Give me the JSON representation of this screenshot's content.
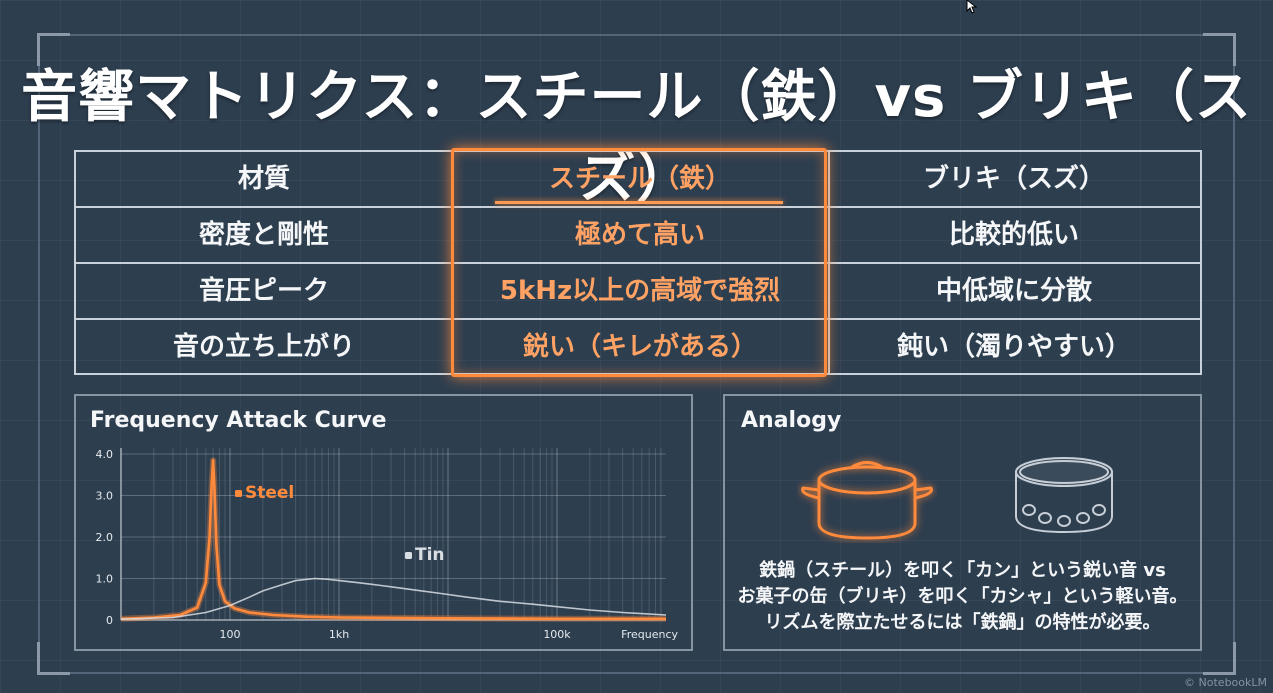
{
  "title": "音響マトリクス：スチール（鉄）vs ブリキ（スズ）",
  "table": {
    "rows": [
      [
        "材質",
        "スチール（鉄）",
        "ブリキ（スズ）"
      ],
      [
        "密度と剛性",
        "極めて高い",
        "比較的低い"
      ],
      [
        "音圧ピーク",
        "5kHz以上の高域で強烈",
        "中低域に分散"
      ],
      [
        "音の立ち上がり",
        "鋭い（キレがある）",
        "鈍い（濁りやすい）"
      ]
    ]
  },
  "colors": {
    "background": "#2d3e4f",
    "steel_accent": "#ff8a3c",
    "tin": "#d9dee3",
    "text": "#f4f6f8"
  },
  "chart_data": {
    "type": "line",
    "title": "Frequency Attack Curve",
    "xlabel": "Frequency",
    "ylabel": "",
    "x_scale": "log",
    "xlim": [
      10,
      1000000
    ],
    "ylim": [
      0,
      4
    ],
    "x_ticks": [
      {
        "value": 100,
        "label": "100"
      },
      {
        "value": 1000,
        "label": "1kh"
      },
      {
        "value": 100000,
        "label": "100k"
      }
    ],
    "y_ticks": [
      {
        "value": 0,
        "label": "0"
      },
      {
        "value": 1,
        "label": "1.0"
      },
      {
        "value": 2,
        "label": "2.0"
      },
      {
        "value": 3,
        "label": "3.0"
      },
      {
        "value": 4,
        "label": "4.0"
      }
    ],
    "grid": true,
    "series": [
      {
        "name": "Steel",
        "color": "#ff8a3c",
        "x": [
          10,
          20,
          35,
          50,
          60,
          65,
          68,
          70,
          72,
          75,
          80,
          90,
          110,
          150,
          250,
          500,
          1000,
          10000,
          100000,
          1000000
        ],
        "y": [
          0.03,
          0.06,
          0.12,
          0.3,
          0.9,
          2.0,
          3.3,
          3.85,
          3.2,
          1.8,
          0.85,
          0.45,
          0.28,
          0.18,
          0.12,
          0.08,
          0.06,
          0.04,
          0.03,
          0.03
        ]
      },
      {
        "name": "Tin",
        "color": "#d9dee3",
        "x": [
          10,
          30,
          60,
          100,
          150,
          200,
          300,
          400,
          600,
          800,
          1000,
          1500,
          2000,
          3000,
          5000,
          8000,
          15000,
          30000,
          60000,
          100000,
          200000,
          400000,
          1000000
        ],
        "y": [
          0.02,
          0.06,
          0.18,
          0.35,
          0.55,
          0.7,
          0.85,
          0.95,
          1.0,
          0.98,
          0.95,
          0.9,
          0.86,
          0.8,
          0.72,
          0.65,
          0.55,
          0.45,
          0.38,
          0.32,
          0.24,
          0.18,
          0.12
        ]
      }
    ]
  },
  "analogy": {
    "title": "Analogy",
    "icons": [
      "cast-iron-pot-icon",
      "tin-can-icon"
    ],
    "caption_lines": [
      "鉄鍋（スチール）を叩く「カン」という鋭い音 vs",
      "お菓子の缶（ブリキ）を叩く「カシャ」という軽い音。",
      "リズムを際立たせるには「鉄鍋」の特性が必要。"
    ]
  },
  "watermark": "© NotebookLM"
}
